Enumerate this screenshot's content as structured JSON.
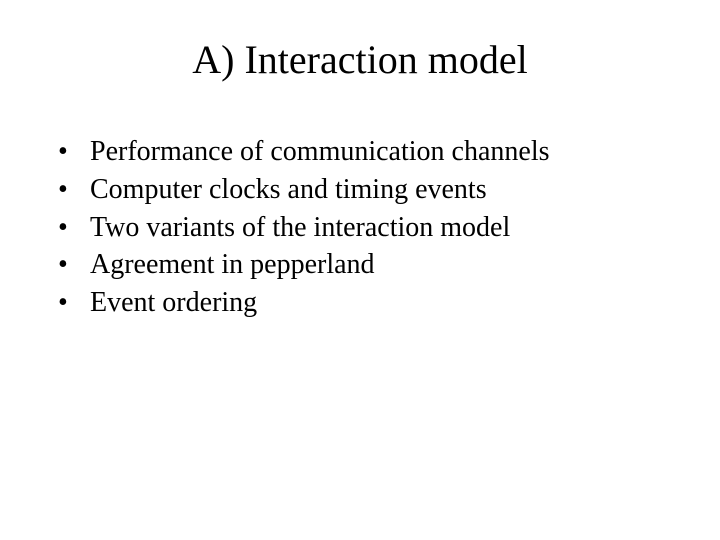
{
  "title": "A) Interaction model",
  "bullets": [
    "Performance of communication channels",
    "Computer clocks and timing events",
    "Two variants of the interaction model",
    "Agreement in pepperland",
    "Event ordering"
  ]
}
